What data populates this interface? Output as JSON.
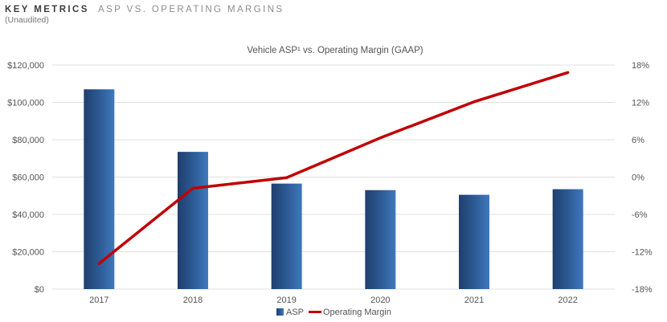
{
  "header": {
    "title_bold": "KEY METRICS",
    "title_light": "ASP VS. OPERATING MARGINS",
    "subtitle": "(Unaudited)"
  },
  "chart_data": {
    "type": "bar",
    "title": "Vehicle ASP¹ vs. Operating Margin (GAAP)",
    "categories": [
      "2017",
      "2018",
      "2019",
      "2020",
      "2021",
      "2022"
    ],
    "series": [
      {
        "name": "ASP",
        "type": "bar",
        "axis": "left",
        "values": [
          107000,
          73500,
          56500,
          53000,
          50500,
          53500
        ],
        "color": "#2e5a91"
      },
      {
        "name": "Operating Margin",
        "type": "line",
        "axis": "right",
        "values": [
          -13.9,
          -1.8,
          -0.1,
          6.3,
          12.1,
          16.8
        ],
        "color": "#c00000"
      }
    ],
    "y_left": {
      "min": 0,
      "max": 120000,
      "ticks": [
        "$0",
        "$20,000",
        "$40,000",
        "$60,000",
        "$80,000",
        "$100,000",
        "$120,000"
      ]
    },
    "y_right": {
      "min": -18,
      "max": 18,
      "ticks": [
        "-18%",
        "-12%",
        "-6%",
        "0%",
        "6%",
        "12%",
        "18%"
      ]
    },
    "grid": true,
    "legend_position": "bottom-center"
  }
}
